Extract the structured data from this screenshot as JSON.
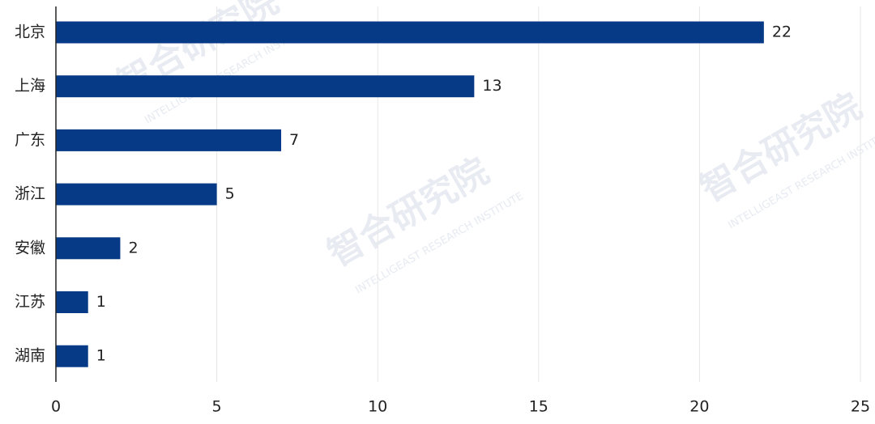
{
  "chart_data": {
    "type": "barh",
    "categories": [
      "北京",
      "上海",
      "广东",
      "浙江",
      "安徽",
      "江苏",
      "湖南"
    ],
    "values": [
      22,
      13,
      7,
      5,
      2,
      1,
      1
    ],
    "color": "#073a86",
    "xlim": [
      0,
      25
    ],
    "xticks": [
      0,
      5,
      10,
      15,
      20,
      25
    ],
    "grid": true,
    "watermark": {
      "title": "智合研究院",
      "subtitle": "INTELLIGEAST RESEARCH INSTITUTE"
    }
  }
}
